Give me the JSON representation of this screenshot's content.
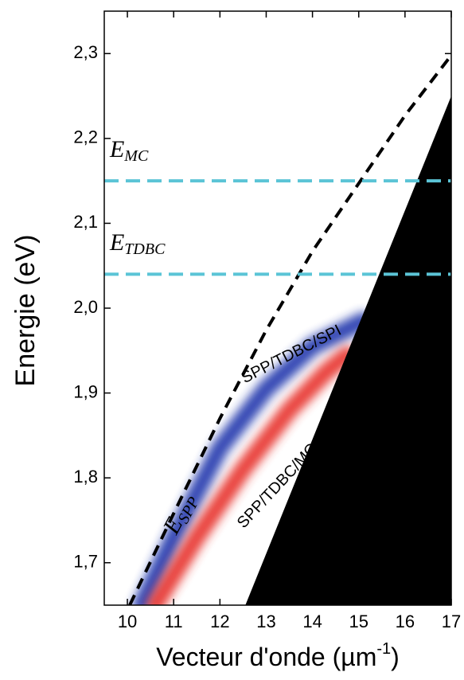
{
  "chart_data": {
    "type": "line",
    "xlabel": {
      "text": "Vecteur d'onde (µm",
      "sup": "-1",
      "end": ")"
    },
    "ylabel": "Energie (eV)",
    "xlim": [
      9.5,
      17
    ],
    "xticks": [
      10,
      11,
      12,
      13,
      14,
      15,
      16,
      17
    ],
    "ylim": [
      1.65,
      2.35
    ],
    "yticks": [
      {
        "value": 1.7,
        "label": "1,7"
      },
      {
        "value": 1.8,
        "label": "1,8"
      },
      {
        "value": 1.9,
        "label": "1,9"
      },
      {
        "value": 2.0,
        "label": "2,0"
      },
      {
        "value": 2.1,
        "label": "2,1"
      },
      {
        "value": 2.2,
        "label": "2,2"
      },
      {
        "value": 2.3,
        "label": "2,3"
      }
    ],
    "series": [
      {
        "style": "band",
        "color": "#2a3fb0",
        "x": [
          10.3,
          11,
          12,
          13,
          14,
          15.1
        ],
        "values": [
          1.65,
          1.73,
          1.835,
          1.905,
          1.955,
          1.985
        ]
      },
      {
        "style": "band",
        "color": "#e83a35",
        "x": [
          10.6,
          11.5,
          12.5,
          13.5,
          14.3,
          14.75
        ],
        "values": [
          1.65,
          1.73,
          1.81,
          1.88,
          1.925,
          1.945
        ]
      },
      {
        "style": "filled",
        "color": "#000000",
        "x": [
          12.55,
          17
        ],
        "values": [
          1.65,
          2.25
        ]
      },
      {
        "style": "dashed",
        "color": "#000000",
        "x": [
          10.05,
          11,
          12,
          13,
          14,
          15,
          16,
          17
        ],
        "values": [
          1.65,
          1.758,
          1.87,
          1.974,
          2.067,
          2.147,
          2.227,
          2.298
        ]
      },
      {
        "style": "hline",
        "color": "#5bc4d6",
        "values": [
          2.15
        ]
      },
      {
        "style": "hline",
        "color": "#5bc4d6",
        "values": [
          2.04
        ]
      }
    ],
    "annotations": [
      {
        "text": "E",
        "sub": "MC"
      },
      {
        "text": "E",
        "sub": "TDBC"
      },
      {
        "text": "E",
        "sub": "SPP"
      },
      {
        "text": "SPP/TDBC/SPI"
      },
      {
        "text": "SPP/TDBC/MC"
      }
    ]
  }
}
